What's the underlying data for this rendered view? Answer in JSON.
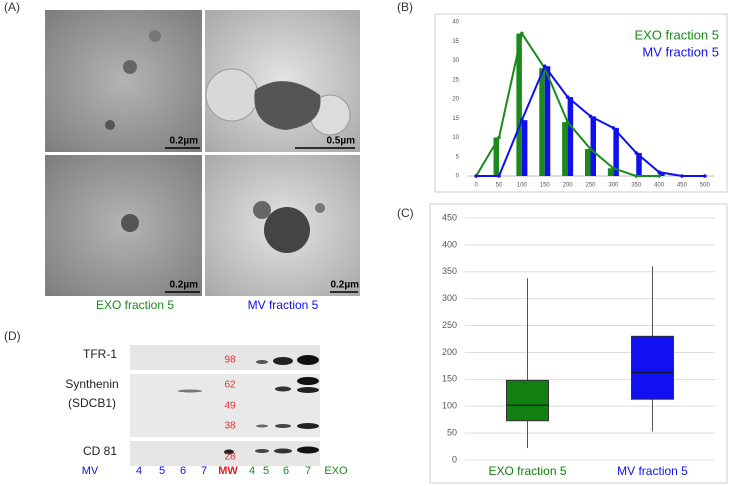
{
  "panels": {
    "a": "(A)",
    "b": "(B)",
    "c": "(C)",
    "d": "(D)"
  },
  "micrographs": {
    "scales": [
      "0.2µm",
      "0.5µm",
      "0.2µm",
      "0.2µm"
    ],
    "captions": [
      "EXO fraction 5",
      "MV fraction 5"
    ]
  },
  "western_blot": {
    "rows": [
      "TFR-1",
      "Synthenin",
      "(SDCB1)",
      "CD 81"
    ],
    "mw_markers": [
      "98",
      "62",
      "49",
      "38",
      "28"
    ],
    "lanes": [
      "MV",
      "4",
      "5",
      "6",
      "7",
      "MW",
      "4",
      "5",
      "6",
      "7",
      "EXO"
    ]
  },
  "chart_data": [
    {
      "type": "bar-line",
      "x": [
        0,
        50,
        100,
        150,
        200,
        250,
        300,
        350,
        400,
        450,
        500
      ],
      "xlim": [
        -20,
        520
      ],
      "xticks": [
        0,
        50,
        100,
        150,
        200,
        250,
        300,
        350,
        400,
        450,
        500
      ],
      "ylim": [
        0,
        40
      ],
      "yticks": [
        0,
        5,
        10,
        15,
        20,
        25,
        30,
        35,
        40
      ],
      "grid": false,
      "legend": "top-right",
      "series": [
        {
          "name": "EXO fraction 5",
          "color": "#1a8a1a",
          "values": [
            0,
            10,
            37,
            28,
            14,
            7,
            2,
            0,
            0,
            null,
            null
          ]
        },
        {
          "name": "MV fraction 5",
          "color": "#1010ee",
          "values": [
            0,
            0,
            14.5,
            28.5,
            20.5,
            15.5,
            12.5,
            6,
            1,
            0,
            0
          ]
        }
      ]
    },
    {
      "type": "box",
      "categories": [
        "EXO fraction 5",
        "MV fraction 5"
      ],
      "colors": [
        "#118011",
        "#1010f0"
      ],
      "ylim": [
        0,
        450
      ],
      "yticks": [
        0,
        50,
        100,
        150,
        200,
        250,
        300,
        350,
        400,
        450
      ],
      "grid": true,
      "boxes": [
        {
          "min": 22,
          "q1": 73,
          "median": 102,
          "q3": 148,
          "max": 338
        },
        {
          "min": 53,
          "q1": 113,
          "median": 163,
          "q3": 230,
          "max": 360
        }
      ]
    }
  ]
}
